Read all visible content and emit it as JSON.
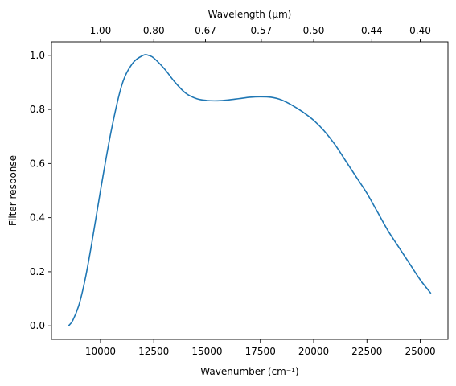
{
  "chart_data": {
    "type": "line",
    "xlabel": "Wavenumber (cm⁻¹)",
    "ylabel": "Filter response",
    "top_xlabel": "Wavelength (μm)",
    "xlim": [
      7700,
      26300
    ],
    "ylim": [
      -0.05,
      1.05
    ],
    "x_ticks": [
      10000,
      12500,
      15000,
      17500,
      20000,
      22500,
      25000
    ],
    "x_tick_labels": [
      "10000",
      "12500",
      "15000",
      "17500",
      "20000",
      "22500",
      "25000"
    ],
    "y_ticks": [
      0.0,
      0.2,
      0.4,
      0.6,
      0.8,
      1.0
    ],
    "y_tick_labels": [
      "0.0",
      "0.2",
      "0.4",
      "0.6",
      "0.8",
      "1.0"
    ],
    "top_ticks_um": [
      1.0,
      0.8,
      0.67,
      0.57,
      0.5,
      0.44,
      0.4
    ],
    "top_tick_labels": [
      "1.00",
      "0.80",
      "0.67",
      "0.57",
      "0.50",
      "0.44",
      "0.40"
    ],
    "grid": false,
    "line_color": "#1f77b4",
    "series": [
      {
        "x": [
          8500,
          8700,
          9000,
          9300,
          9600,
          10000,
          10500,
          11000,
          11500,
          12000,
          12250,
          12500,
          13000,
          13500,
          14000,
          14500,
          15000,
          15500,
          16000,
          16500,
          17000,
          17500,
          18000,
          18500,
          19000,
          19500,
          20000,
          20500,
          21000,
          21500,
          22000,
          22500,
          23000,
          23500,
          24000,
          24500,
          25000,
          25500
        ],
        "y": [
          0.0,
          0.02,
          0.08,
          0.18,
          0.31,
          0.5,
          0.72,
          0.89,
          0.97,
          1.0,
          1.0,
          0.99,
          0.95,
          0.9,
          0.86,
          0.84,
          0.833,
          0.832,
          0.835,
          0.84,
          0.845,
          0.847,
          0.845,
          0.835,
          0.815,
          0.79,
          0.76,
          0.72,
          0.67,
          0.61,
          0.55,
          0.49,
          0.42,
          0.35,
          0.29,
          0.23,
          0.17,
          0.12
        ]
      }
    ]
  }
}
